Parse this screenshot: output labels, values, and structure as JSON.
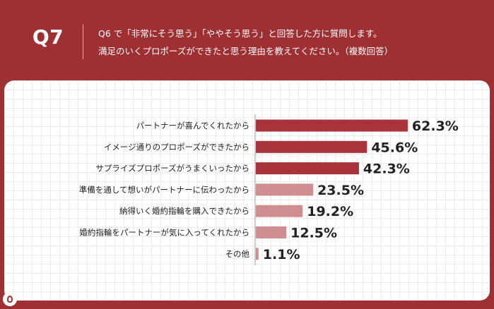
{
  "header": {
    "question_id": "Q7",
    "question_line1": "Q6 で「非常にそう思う」「ややそう思う」と回答した方に質問します。",
    "question_line2": "満足のいくプロポーズができたと思う理由を教えてください。（複数回答）"
  },
  "colors": {
    "background": "#9e3034",
    "bar_dark": "#a8333a",
    "bar_light": "#d08e91"
  },
  "chart_data": {
    "type": "bar",
    "orientation": "horizontal",
    "categories": [
      "パートナーが喜んでくれたから",
      "イメージ通りのプロポーズができたから",
      "サプライズプロポーズがうまくいったから",
      "準備を通して想いがパートナーに伝わったから",
      "納得いく婚約指輪を購入できたから",
      "婚約指輪をパートナーが気に入ってくれたから",
      "その他"
    ],
    "values": [
      62.3,
      45.6,
      42.3,
      23.5,
      19.2,
      12.5,
      1.1
    ],
    "value_labels": [
      "62.3%",
      "45.6%",
      "42.3%",
      "23.5%",
      "19.2%",
      "12.5%",
      "1.1%"
    ],
    "highlight": [
      true,
      true,
      true,
      false,
      false,
      false,
      false
    ],
    "xlim": [
      0,
      100
    ],
    "grid": true
  }
}
